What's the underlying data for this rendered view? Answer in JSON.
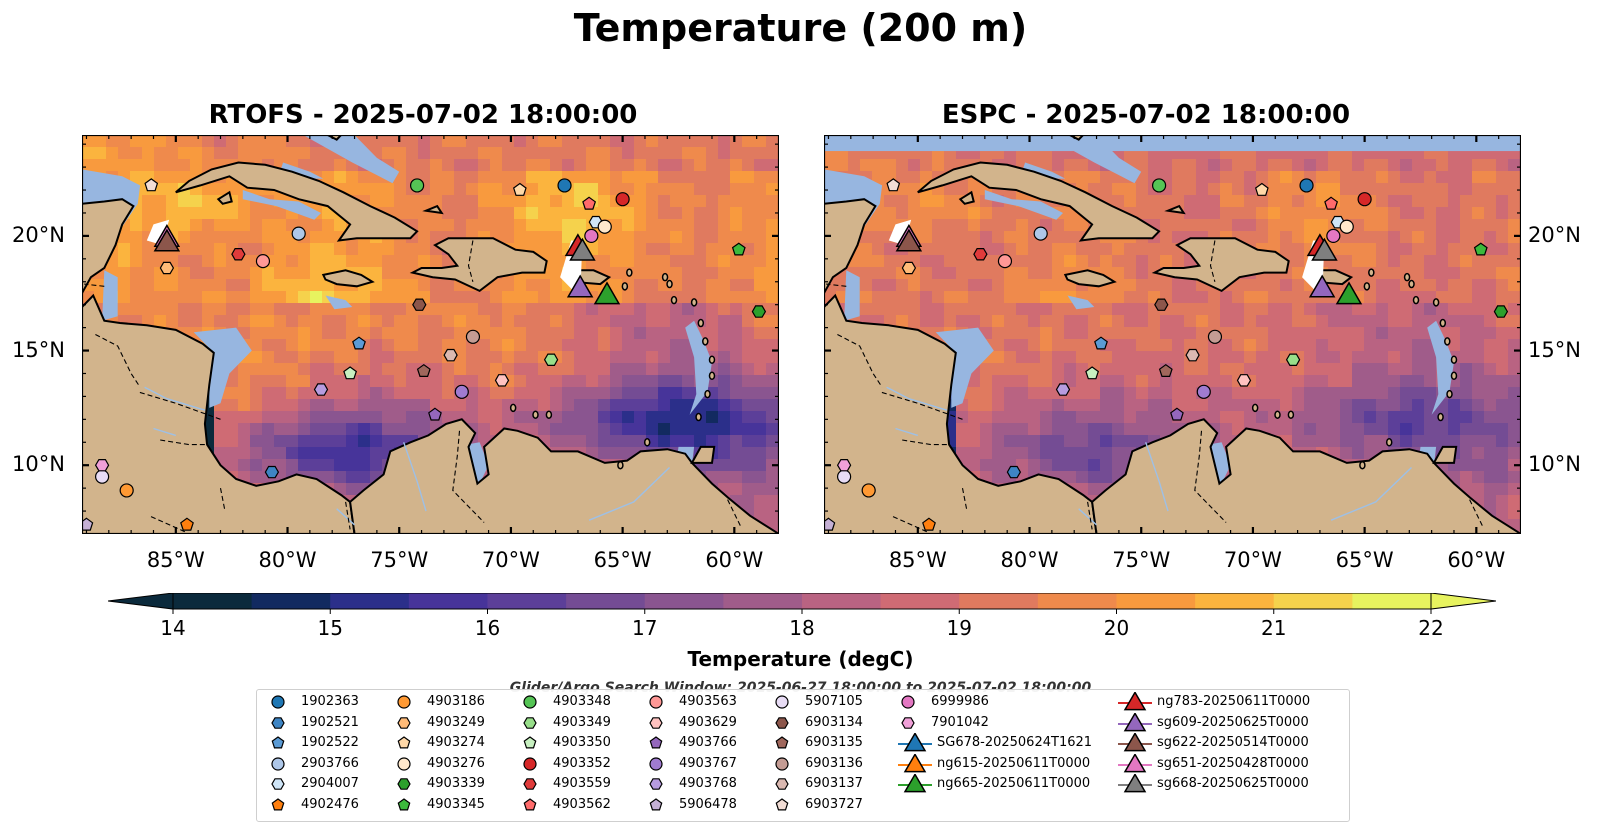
{
  "figure": {
    "title": "Temperature (200 m)",
    "search_window": "Glider/Argo Search Window: 2025-06-27 18:00:00 to 2025-07-02 18:00:00"
  },
  "panels": [
    {
      "title": "RTOFS - 2025-07-02 18:00:00",
      "model": "RTOFS"
    },
    {
      "title": "ESPC - 2025-07-02 18:00:00",
      "model": "ESPC"
    }
  ],
  "map": {
    "extent": {
      "lon_min": -89.2,
      "lon_max": -58.0,
      "lat_min": 7.0,
      "lat_max": 24.4
    },
    "x_ticks": [
      -85,
      -80,
      -75,
      -70,
      -65,
      -60
    ],
    "x_tick_labels": [
      "85°W",
      "80°W",
      "75°W",
      "70°W",
      "65°W",
      "60°W"
    ],
    "y_ticks": [
      10,
      15,
      20
    ],
    "y_tick_labels": [
      "10°N",
      "15°N",
      "20°N"
    ],
    "land_color": "#d2b48c",
    "shallow_color": "#97b6e0"
  },
  "colorbar": {
    "label": "Temperature (degC)",
    "min": 14,
    "max": 22,
    "ticks": [
      14,
      15,
      16,
      17,
      18,
      19,
      20,
      21,
      22
    ],
    "tick_labels": [
      "14",
      "15",
      "16",
      "17",
      "18",
      "19",
      "20",
      "21",
      "22"
    ],
    "colormap": "thermal",
    "colors": [
      "#0b2a3c",
      "#122a60",
      "#2b2f8a",
      "#47349a",
      "#5c3f99",
      "#744c94",
      "#8a5590",
      "#a05c8a",
      "#b96382",
      "#cf6b74",
      "#e07a5f",
      "#ef8a4c",
      "#f89a3e",
      "#fbb43e",
      "#f5d24c",
      "#e7f35f"
    ],
    "extend": "both"
  },
  "legend": {
    "entries": [
      {
        "label": "1902363",
        "marker": "circle",
        "color": "#1f77b4"
      },
      {
        "label": "1902521",
        "marker": "hexagon",
        "color": "#3e85c4"
      },
      {
        "label": "1902522",
        "marker": "pentagon",
        "color": "#5b9bd5"
      },
      {
        "label": "2903766",
        "marker": "circle",
        "color": "#aec7e8"
      },
      {
        "label": "2904007",
        "marker": "hexagon",
        "color": "#cfe5f7"
      },
      {
        "label": "4902476",
        "marker": "pentagon",
        "color": "#ff7f0e"
      },
      {
        "label": "4903186",
        "marker": "circle",
        "color": "#ff9933"
      },
      {
        "label": "4903249",
        "marker": "hexagon",
        "color": "#ffbb78"
      },
      {
        "label": "4903274",
        "marker": "pentagon",
        "color": "#ffd8a8"
      },
      {
        "label": "4903276",
        "marker": "circle",
        "color": "#ffe8cc"
      },
      {
        "label": "4903339",
        "marker": "hexagon",
        "color": "#2ca02c"
      },
      {
        "label": "4903345",
        "marker": "pentagon",
        "color": "#3cb93c"
      },
      {
        "label": "4903348",
        "marker": "circle",
        "color": "#55c455"
      },
      {
        "label": "4903349",
        "marker": "hexagon",
        "color": "#98df8a"
      },
      {
        "label": "4903350",
        "marker": "pentagon",
        "color": "#c7f0c0"
      },
      {
        "label": "4903352",
        "marker": "circle",
        "color": "#d62728"
      },
      {
        "label": "4903559",
        "marker": "hexagon",
        "color": "#e03b3b"
      },
      {
        "label": "4903562",
        "marker": "pentagon",
        "color": "#ff6b6b"
      },
      {
        "label": "4903563",
        "marker": "circle",
        "color": "#ff9896"
      },
      {
        "label": "4903629",
        "marker": "hexagon",
        "color": "#ffc2c0"
      },
      {
        "label": "4903766",
        "marker": "pentagon",
        "color": "#9467bd"
      },
      {
        "label": "4903767",
        "marker": "circle",
        "color": "#a07bd0"
      },
      {
        "label": "4903768",
        "marker": "hexagon",
        "color": "#b79ce0"
      },
      {
        "label": "5906478",
        "marker": "pentagon",
        "color": "#c5b0d5"
      },
      {
        "label": "5907105",
        "marker": "circle",
        "color": "#e8dcf5"
      },
      {
        "label": "6903134",
        "marker": "hexagon",
        "color": "#8c564b"
      },
      {
        "label": "6903135",
        "marker": "pentagon",
        "color": "#a0675c"
      },
      {
        "label": "6903136",
        "marker": "circle",
        "color": "#c49c94"
      },
      {
        "label": "6903137",
        "marker": "hexagon",
        "color": "#dbb9b1"
      },
      {
        "label": "6903727",
        "marker": "pentagon",
        "color": "#f2ddd5"
      },
      {
        "label": "6999986",
        "marker": "circle",
        "color": "#e377c2"
      },
      {
        "label": "7901042",
        "marker": "hexagon",
        "color": "#f0a0d8"
      },
      {
        "label": "SG678-20250624T1621",
        "marker": "triangle",
        "color": "#1f77b4"
      },
      {
        "label": "ng615-20250611T0000",
        "marker": "triangle",
        "color": "#ff7f0e"
      },
      {
        "label": "ng665-20250611T0000",
        "marker": "triangle",
        "color": "#2ca02c"
      },
      {
        "label": "ng783-20250611T0000",
        "marker": "triangle",
        "color": "#d62728"
      },
      {
        "label": "sg609-20250625T0000",
        "marker": "triangle",
        "color": "#9467bd"
      },
      {
        "label": "sg622-20250514T0000",
        "marker": "triangle",
        "color": "#8c564b"
      },
      {
        "label": "sg651-20250428T0000",
        "marker": "triangle",
        "color": "#e377c2"
      },
      {
        "label": "sg668-20250625T0000",
        "marker": "triangle",
        "color": "#7f7f7f"
      }
    ]
  },
  "argo_floats": [
    {
      "id": "1902363",
      "lon": -67.6,
      "lat": 22.2
    },
    {
      "id": "1902522",
      "lon": -76.8,
      "lat": 15.3
    },
    {
      "id": "2903766",
      "lon": -79.5,
      "lat": 20.1
    },
    {
      "id": "2904007",
      "lon": -66.2,
      "lat": 20.6
    },
    {
      "id": "4902476",
      "lon": -84.5,
      "lat": 7.4
    },
    {
      "id": "4903186",
      "lon": -87.2,
      "lat": 8.9
    },
    {
      "id": "4903249",
      "lon": -85.4,
      "lat": 18.6
    },
    {
      "id": "4903274",
      "lon": -69.6,
      "lat": 22.0
    },
    {
      "id": "4903276",
      "lon": -65.8,
      "lat": 20.4
    },
    {
      "id": "4903339",
      "lon": -58.9,
      "lat": 16.7
    },
    {
      "id": "4903345",
      "lon": -59.8,
      "lat": 19.4
    },
    {
      "id": "4903348",
      "lon": -74.2,
      "lat": 22.2
    },
    {
      "id": "4903349",
      "lon": -68.2,
      "lat": 14.6
    },
    {
      "id": "4903350",
      "lon": -77.2,
      "lat": 14.0
    },
    {
      "id": "4903352",
      "lon": -65.0,
      "lat": 21.6
    },
    {
      "id": "4903559",
      "lon": -82.2,
      "lat": 19.2
    },
    {
      "id": "4903562",
      "lon": -66.5,
      "lat": 21.4
    },
    {
      "id": "4903563",
      "lon": -81.1,
      "lat": 18.9
    },
    {
      "id": "4903629",
      "lon": -70.4,
      "lat": 13.7
    },
    {
      "id": "4903766",
      "lon": -73.4,
      "lat": 12.2
    },
    {
      "id": "4903767",
      "lon": -72.2,
      "lat": 13.2
    },
    {
      "id": "4903768",
      "lon": -78.5,
      "lat": 13.3
    },
    {
      "id": "5906478",
      "lon": -89.0,
      "lat": 7.4
    },
    {
      "id": "5907105",
      "lon": -88.3,
      "lat": 9.5
    },
    {
      "id": "6903134",
      "lon": -74.1,
      "lat": 17.0
    },
    {
      "id": "6903135",
      "lon": -73.9,
      "lat": 14.1
    },
    {
      "id": "6903136",
      "lon": -71.7,
      "lat": 15.6
    },
    {
      "id": "6903137",
      "lon": -72.7,
      "lat": 14.8
    },
    {
      "id": "6903727",
      "lon": -86.1,
      "lat": 22.2
    },
    {
      "id": "6999986",
      "lon": -66.4,
      "lat": 20.0
    },
    {
      "id": "7901042",
      "lon": -88.3,
      "lat": 10.0
    },
    {
      "id": "1902521",
      "lon": -80.7,
      "lat": 9.7
    }
  ],
  "gliders": [
    {
      "id": "sg651-20250428T0000",
      "lon": -85.4,
      "lat": 20.0
    },
    {
      "id": "sg622-20250514T0000",
      "lon": -85.4,
      "lat": 19.8
    },
    {
      "id": "ng783-20250611T0000",
      "lon": -67.0,
      "lat": 19.6
    },
    {
      "id": "sg668-20250625T0000",
      "lon": -66.8,
      "lat": 19.4
    },
    {
      "id": "sg609-20250625T0000",
      "lon": -66.9,
      "lat": 17.8
    },
    {
      "id": "ng665-20250611T0000",
      "lon": -65.7,
      "lat": 17.5
    }
  ]
}
